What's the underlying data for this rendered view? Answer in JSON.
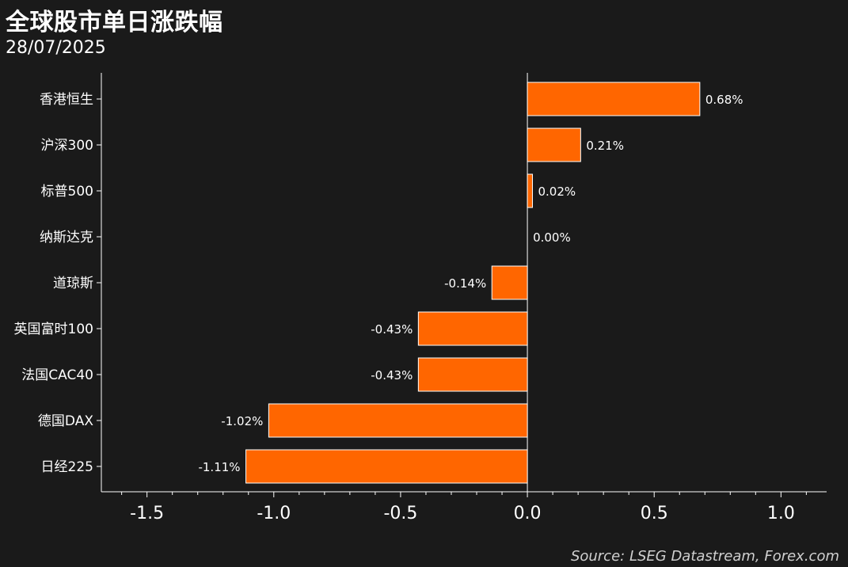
{
  "header": {
    "title": "全球股市单日涨跌幅",
    "subtitle": "28/07/2025"
  },
  "footer": {
    "source": "Source: LSEG Datastream, Forex.com"
  },
  "colors": {
    "background": "#1a1a1a",
    "bar": "#ff6600",
    "bar_outline": "#ffffff",
    "text": "#ffffff"
  },
  "chart_data": {
    "type": "bar",
    "orientation": "horizontal",
    "title": "全球股市单日涨跌幅",
    "subtitle": "28/07/2025",
    "categories": [
      "香港恒生",
      "沪深300",
      "标普500",
      "纳斯达克",
      "道琼斯",
      "英国富时100",
      "法国CAC40",
      "德国DAX",
      "日经225"
    ],
    "values": [
      0.68,
      0.21,
      0.02,
      0.0,
      -0.14,
      -0.43,
      -0.43,
      -1.02,
      -1.11
    ],
    "value_labels": [
      "0.68%",
      "0.21%",
      "0.02%",
      "0.00%",
      "-0.14%",
      "-0.43%",
      "-0.43%",
      "-1.02%",
      "-1.11%"
    ],
    "xlim": [
      -1.68,
      1.18
    ],
    "x_ticks": [
      -1.5,
      -1.0,
      -0.5,
      0.0,
      0.5,
      1.0
    ],
    "x_tick_labels": [
      "-1.5",
      "-1.0",
      "-0.5",
      "0.0",
      "0.5",
      "1.0"
    ],
    "grid": false
  }
}
